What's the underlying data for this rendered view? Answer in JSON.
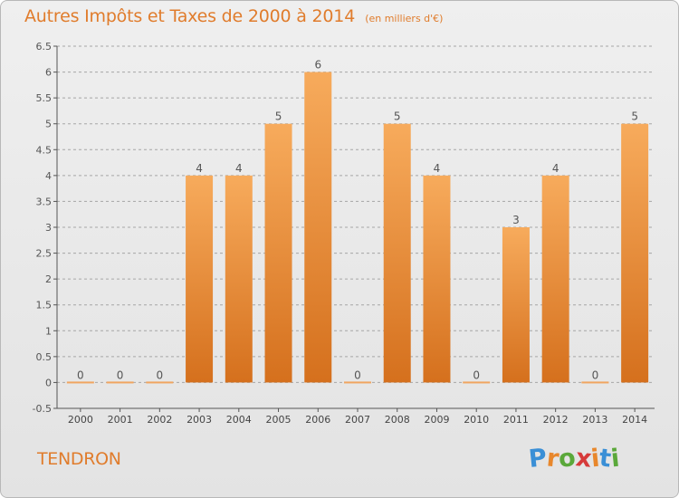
{
  "header": {
    "title": "Autres Impôts et Taxes de 2000 à 2014",
    "subtitle": "(en milliers d'€)"
  },
  "footer": {
    "commune": "TENDRON",
    "brand": "Proxiti"
  },
  "colors": {
    "accent": "#e07c2c",
    "bar_light": "#f6a95a",
    "bar_dark": "#d8731f",
    "grid": "#a0a0a0",
    "brand_letters": [
      "#3a8fd6",
      "#e8872c",
      "#5aa83a",
      "#d63a3a",
      "#e8872c",
      "#3a8fd6",
      "#5aa83a"
    ]
  },
  "chart_data": {
    "type": "bar",
    "title": "Autres Impôts et Taxes de 2000 à 2014",
    "subtitle": "(en milliers d'€)",
    "categories": [
      "2000",
      "2001",
      "2002",
      "2003",
      "2004",
      "2005",
      "2006",
      "2007",
      "2008",
      "2009",
      "2010",
      "2011",
      "2012",
      "2013",
      "2014"
    ],
    "values": [
      0,
      0,
      0,
      4,
      4,
      5,
      6,
      0,
      5,
      4,
      0,
      3,
      4,
      0,
      5
    ],
    "data_labels": [
      "0",
      "0",
      "0",
      "4",
      "4",
      "5",
      "6",
      "0",
      "5",
      "4",
      "0",
      "3",
      "4",
      "0",
      "5"
    ],
    "ylim": [
      -0.5,
      6.5
    ],
    "yticks": [
      -0.5,
      0,
      0.5,
      1,
      1.5,
      2,
      2.5,
      3,
      3.5,
      4,
      4.5,
      5,
      5.5,
      6,
      6.5
    ],
    "ytick_labels": [
      "-0.5",
      "0",
      "0.5",
      "1",
      "1.5",
      "2",
      "2.5",
      "3",
      "3.5",
      "4",
      "4.5",
      "5",
      "5.5",
      "6",
      "6.5"
    ],
    "grid": true,
    "xlabel": "",
    "ylabel": ""
  }
}
